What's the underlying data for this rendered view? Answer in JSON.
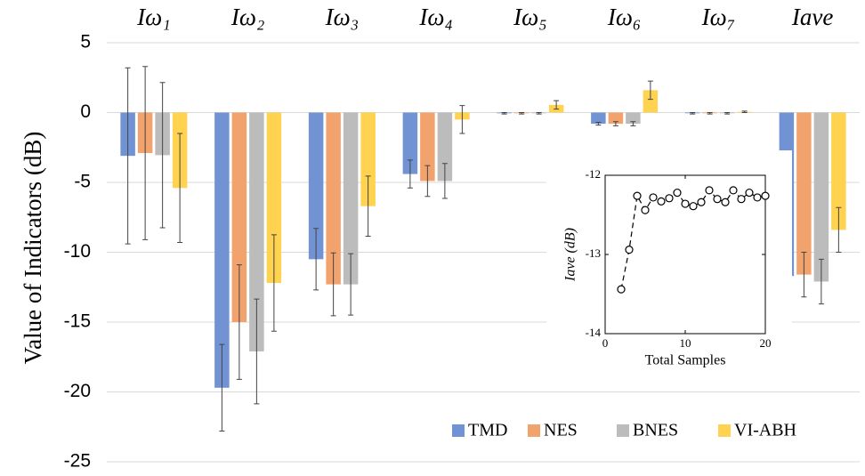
{
  "chart_data": [
    {
      "type": "bar",
      "ylabel": "Value of Indicators (dB)",
      "categories": [
        "Iω₁",
        "Iω₂",
        "Iω₃",
        "Iω₄",
        "Iω₅",
        "Iω₆",
        "Iω₇",
        "Iave"
      ],
      "series": [
        {
          "name": "TMD",
          "color": "#7193d3",
          "values": [
            -3.1,
            -19.7,
            -10.5,
            -4.4,
            -0.05,
            -0.8,
            -0.05,
            -11.7
          ],
          "errors": [
            6.3,
            3.1,
            2.2,
            1.0,
            0.05,
            0.1,
            0.05,
            1.5
          ]
        },
        {
          "name": "NES",
          "color": "#f2a36d",
          "values": [
            -2.9,
            -15.0,
            -12.3,
            -4.9,
            -0.05,
            -0.8,
            -0.05,
            -11.6
          ],
          "errors": [
            6.2,
            4.1,
            2.25,
            1.1,
            0.05,
            0.15,
            0.05,
            1.6
          ]
        },
        {
          "name": "BNES",
          "color": "#bcbcbc",
          "values": [
            -3.05,
            -17.1,
            -12.3,
            -4.9,
            -0.05,
            -0.8,
            -0.05,
            -12.1
          ],
          "errors": [
            5.2,
            3.75,
            2.2,
            1.25,
            0.05,
            0.15,
            0.05,
            1.6
          ]
        },
        {
          "name": "VI-ABH",
          "color": "#ffd24f",
          "values": [
            -5.4,
            -12.2,
            -6.7,
            -0.5,
            0.55,
            1.6,
            0.05,
            -8.4
          ],
          "errors": [
            3.9,
            3.45,
            2.15,
            1.0,
            0.3,
            0.65,
            0.05,
            1.6
          ]
        }
      ],
      "ylim": [
        -25,
        5
      ],
      "yticks": [
        -25,
        -20,
        -15,
        -10,
        -5,
        0,
        5
      ],
      "grid": true,
      "legend": "lower right"
    },
    {
      "type": "line",
      "xlabel": "Total Samples",
      "ylabel": "Iave (dB)",
      "x": [
        2,
        3,
        4,
        5,
        6,
        7,
        8,
        9,
        10,
        11,
        12,
        13,
        14,
        15,
        16,
        17,
        18,
        19,
        20
      ],
      "values": [
        -13.44,
        -12.94,
        -12.26,
        -12.44,
        -12.28,
        -12.33,
        -12.29,
        -12.22,
        -12.36,
        -12.39,
        -12.34,
        -12.19,
        -12.3,
        -12.34,
        -12.19,
        -12.3,
        -12.22,
        -12.28,
        -12.26
      ],
      "color": "#000000",
      "line_style": "dashed",
      "marker": "open-circle",
      "xlim": [
        0,
        20
      ],
      "xticks": [
        0,
        10,
        20
      ],
      "ylim": [
        -14,
        -12
      ],
      "yticks": [
        -14,
        -13,
        -12
      ]
    }
  ]
}
